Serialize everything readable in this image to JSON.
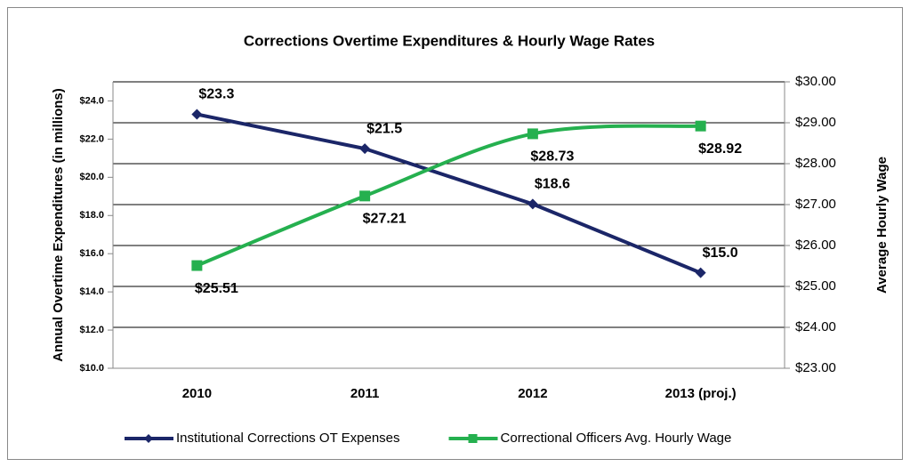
{
  "chart_data": {
    "type": "line",
    "title": "Corrections Overtime Expenditures & Hourly Wage Rates",
    "ylabel": "Annual Overtime Expenditures (in millions)",
    "y2label": "Average Hourly Wage",
    "categories": [
      "2010",
      "2011",
      "2012",
      "2013 (proj.)"
    ],
    "series": [
      {
        "name": "Institutional Corrections OT Expenses",
        "color": "#1b2668",
        "marker": "diamond",
        "smooth": false,
        "values": [
          23.3,
          21.5,
          18.6,
          15.0
        ],
        "value_labels": [
          "$23.3",
          "$21.5",
          "$18.6",
          "$15.0"
        ]
      },
      {
        "name": "Correctional Officers Avg. Hourly Wage",
        "color": "#25b04f",
        "marker": "square",
        "smooth": true,
        "axis": "y2",
        "values": [
          25.51,
          27.21,
          28.73,
          28.92
        ],
        "value_labels": [
          "$25.51",
          "$27.21",
          "$28.73",
          "$28.92"
        ]
      }
    ],
    "ylim": [
      10,
      25
    ],
    "yticks": [
      {
        "value": 10,
        "label": "$10.0"
      },
      {
        "value": 12,
        "label": "$12.0"
      },
      {
        "value": 14,
        "label": "$14.0"
      },
      {
        "value": 16,
        "label": "$16.0"
      },
      {
        "value": 18,
        "label": "$18.0"
      },
      {
        "value": 20,
        "label": "$20.0"
      },
      {
        "value": 22,
        "label": "$22.0"
      },
      {
        "value": 24,
        "label": "$24.0"
      }
    ],
    "y2lim": [
      23,
      30
    ],
    "y2ticks": [
      {
        "value": 23,
        "label": "$23.00"
      },
      {
        "value": 24,
        "label": "$24.00"
      },
      {
        "value": 25,
        "label": "$25.00"
      },
      {
        "value": 26,
        "label": "$26.00"
      },
      {
        "value": 27,
        "label": "$27.00"
      },
      {
        "value": 28,
        "label": "$28.00"
      },
      {
        "value": 29,
        "label": "$29.00"
      },
      {
        "value": 30,
        "label": "$30.00"
      }
    ],
    "grid": "y2",
    "legend": "bottom"
  }
}
